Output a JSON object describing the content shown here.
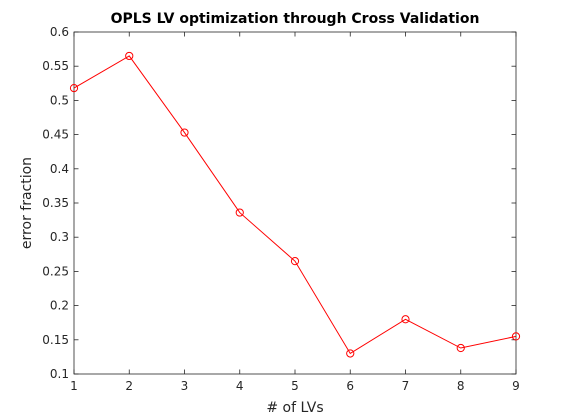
{
  "chart_data": {
    "type": "line",
    "title": "OPLS LV optimization through Cross Validation",
    "xlabel": "# of LVs",
    "ylabel": "error fraction",
    "xlim": [
      1,
      9
    ],
    "ylim": [
      0.1,
      0.6
    ],
    "xticks": [
      "1",
      "2",
      "3",
      "4",
      "5",
      "6",
      "7",
      "8",
      "9"
    ],
    "yticks": [
      "0.1",
      "0.15",
      "0.2",
      "0.25",
      "0.3",
      "0.35",
      "0.4",
      "0.45",
      "0.5",
      "0.55",
      "0.6"
    ],
    "grid": false,
    "marker": "circle",
    "series": [
      {
        "color": "#ff0000",
        "x": [
          1,
          2,
          3,
          4,
          5,
          6,
          7,
          8,
          9
        ],
        "y": [
          0.518,
          0.565,
          0.453,
          0.336,
          0.265,
          0.13,
          0.18,
          0.138,
          0.155
        ]
      }
    ]
  }
}
